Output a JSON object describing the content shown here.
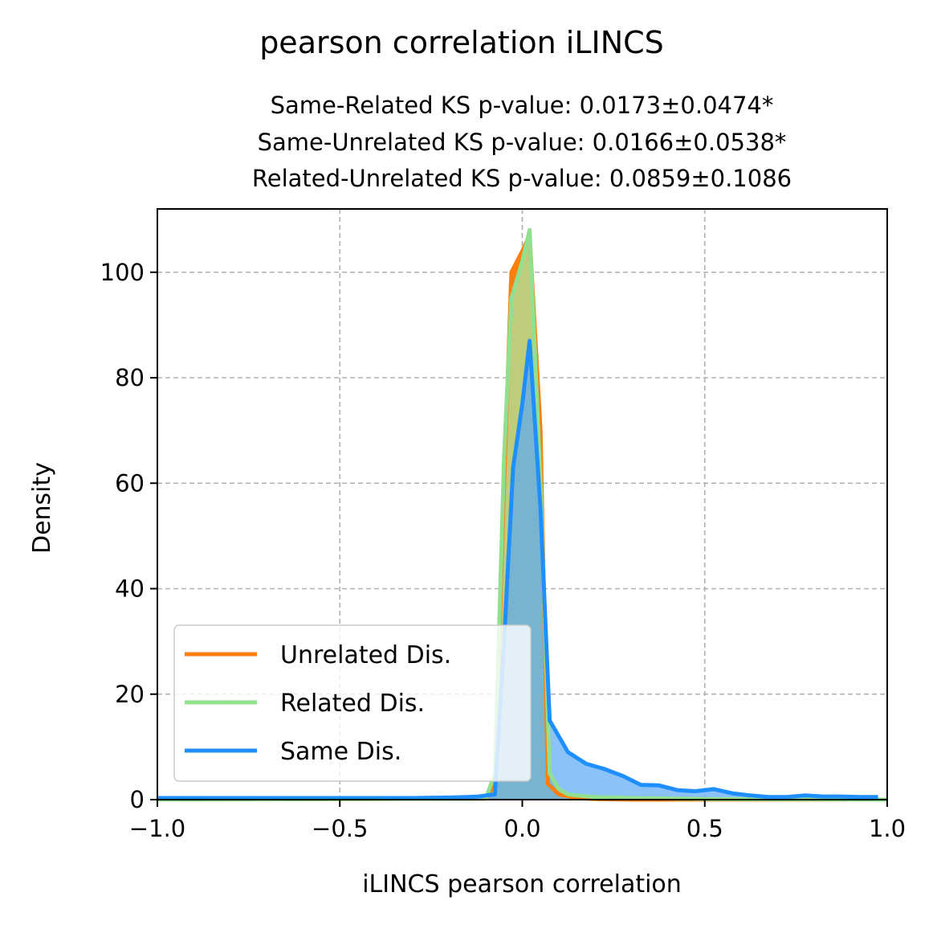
{
  "chart_data": {
    "type": "area",
    "suptitle": "pearson correlation iLINCS",
    "title_lines": [
      "Same-Related KS p-value: 0.0173±0.0474*",
      "Same-Unrelated KS p-value: 0.0166±0.0538*",
      "Related-Unrelated KS p-value: 0.0859±0.1086"
    ],
    "xlabel": "iLINCS pearson correlation",
    "ylabel": "Density",
    "xlim": [
      -1.0,
      1.0
    ],
    "ylim": [
      0,
      112
    ],
    "xticks": [
      -1.0,
      -0.5,
      0.0,
      0.5,
      1.0
    ],
    "xtick_labels": [
      "−1.0",
      "−0.5",
      "0.0",
      "0.5",
      "1.0"
    ],
    "yticks": [
      0,
      20,
      40,
      60,
      80,
      100
    ],
    "ytick_labels": [
      "0",
      "20",
      "40",
      "60",
      "80",
      "100"
    ],
    "grid": true,
    "legend_position": "lower-left",
    "series": [
      {
        "name": "Unrelated Dis.",
        "color": "#ff7f0e",
        "fill": "#ff7f0e",
        "fill_opacity": 1.0,
        "x": [
          -1.0,
          -0.1,
          -0.075,
          -0.05,
          -0.03,
          0.0,
          0.02,
          0.05,
          0.07,
          0.1,
          0.15,
          0.2,
          0.3,
          0.5,
          1.0
        ],
        "y": [
          0,
          0.2,
          3,
          60,
          100,
          104,
          107,
          70,
          3,
          1,
          0.3,
          0.1,
          0,
          0,
          0
        ]
      },
      {
        "name": "Related Dis.",
        "color": "#90e090",
        "fill": "#a8e6a0",
        "fill_opacity": 0.75,
        "x": [
          -1.0,
          -0.1,
          -0.075,
          -0.05,
          -0.03,
          0.0,
          0.02,
          0.05,
          0.075,
          0.1,
          0.125,
          0.15,
          0.2,
          0.3,
          0.5,
          1.0
        ],
        "y": [
          0,
          0.2,
          5,
          65,
          95,
          102,
          108,
          60,
          5,
          2,
          1,
          0.8,
          0.5,
          0.3,
          0.1,
          0
        ]
      },
      {
        "name": "Same Dis.",
        "color": "#1f8fff",
        "fill": "#5aaaf5",
        "fill_opacity": 0.7,
        "x": [
          -1.0,
          -0.8,
          -0.6,
          -0.4,
          -0.3,
          -0.2,
          -0.15,
          -0.12,
          -0.075,
          -0.05,
          -0.025,
          0.0,
          0.02,
          0.05,
          0.075,
          0.1,
          0.125,
          0.175,
          0.225,
          0.275,
          0.325,
          0.375,
          0.425,
          0.475,
          0.525,
          0.575,
          0.625,
          0.675,
          0.725,
          0.775,
          0.825,
          0.875,
          0.925,
          0.975
        ],
        "y": [
          0.3,
          0.3,
          0.3,
          0.3,
          0.3,
          0.4,
          0.5,
          0.6,
          1.0,
          30,
          63,
          75,
          87,
          55,
          15,
          12,
          9,
          6.8,
          5.8,
          4.5,
          2.8,
          2.7,
          1.8,
          1.6,
          2.0,
          1.2,
          0.8,
          0.5,
          0.5,
          0.8,
          0.6,
          0.6,
          0.5,
          0.5
        ]
      }
    ]
  }
}
